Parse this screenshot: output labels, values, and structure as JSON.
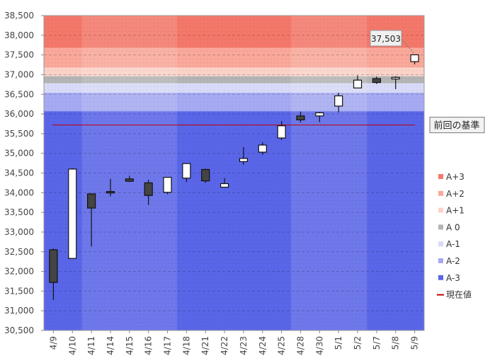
{
  "chart_data": {
    "type": "candlestick",
    "categories": [
      "4/9",
      "4/10",
      "4/11",
      "4/14",
      "4/15",
      "4/16",
      "4/17",
      "4/18",
      "4/21",
      "4/22",
      "4/23",
      "4/24",
      "4/25",
      "4/28",
      "4/30",
      "5/1",
      "5/2",
      "5/7",
      "5/8",
      "5/9"
    ],
    "ylim": [
      30500,
      38500
    ],
    "yticks": [
      "30,500",
      "31,000",
      "31,500",
      "32,000",
      "32,500",
      "33,000",
      "33,500",
      "34,000",
      "34,500",
      "35,000",
      "35,500",
      "36,000",
      "36,500",
      "37,000",
      "37,500",
      "38,000",
      "38,500"
    ],
    "ytick_values": [
      30500,
      31000,
      31500,
      32000,
      32500,
      33000,
      33500,
      34000,
      34500,
      35000,
      35500,
      36000,
      36500,
      37000,
      37500,
      38000,
      38500
    ],
    "candles": [
      {
        "open": 32550,
        "high": 32580,
        "low": 31280,
        "close": 31720
      },
      {
        "open": 32330,
        "high": 34620,
        "low": 32330,
        "close": 34600
      },
      {
        "open": 33970,
        "high": 33970,
        "low": 32630,
        "close": 33610
      },
      {
        "open": 34030,
        "high": 34350,
        "low": 33910,
        "close": 34010
      },
      {
        "open": 34350,
        "high": 34430,
        "low": 34270,
        "close": 34290
      },
      {
        "open": 34250,
        "high": 34330,
        "low": 33690,
        "close": 33930
      },
      {
        "open": 34010,
        "high": 34400,
        "low": 33960,
        "close": 34390
      },
      {
        "open": 34370,
        "high": 34750,
        "low": 34270,
        "close": 34740
      },
      {
        "open": 34590,
        "high": 34610,
        "low": 34250,
        "close": 34300
      },
      {
        "open": 34140,
        "high": 34370,
        "low": 34140,
        "close": 34230
      },
      {
        "open": 34790,
        "high": 35160,
        "low": 34710,
        "close": 34870
      },
      {
        "open": 35030,
        "high": 35280,
        "low": 34960,
        "close": 35210
      },
      {
        "open": 35390,
        "high": 35820,
        "low": 35340,
        "close": 35700
      },
      {
        "open": 35950,
        "high": 36060,
        "low": 35780,
        "close": 35850
      },
      {
        "open": 35950,
        "high": 36050,
        "low": 35790,
        "close": 36030
      },
      {
        "open": 36200,
        "high": 36540,
        "low": 36040,
        "close": 36460
      },
      {
        "open": 36660,
        "high": 36980,
        "low": 36660,
        "close": 36860
      },
      {
        "open": 36900,
        "high": 36950,
        "low": 36760,
        "close": 36800
      },
      {
        "open": 36890,
        "high": 36960,
        "low": 36630,
        "close": 36930
      },
      {
        "open": 37330,
        "high": 37510,
        "low": 37260,
        "close": 37503
      }
    ],
    "bands": [
      {
        "name": "A+3",
        "from": 37680,
        "to": 38500,
        "color": "#f4786a"
      },
      {
        "name": "A+2",
        "from": 37180,
        "to": 37680,
        "color": "#f9a899"
      },
      {
        "name": "A+1",
        "from": 36960,
        "to": 37180,
        "color": "#fbd2c8"
      },
      {
        "name": "A 0",
        "from": 36780,
        "to": 36960,
        "color": "#b4b4b4"
      },
      {
        "name": "A-1",
        "from": 36540,
        "to": 36780,
        "color": "#d8daf8"
      },
      {
        "name": "A-2",
        "from": 36070,
        "to": 36540,
        "color": "#a5aaf2"
      },
      {
        "name": "A-3",
        "from": 30500,
        "to": 36070,
        "color": "#5a66e8"
      }
    ],
    "current_value_line": {
      "name": "現在値",
      "value": 35720,
      "color": "#c00000"
    },
    "reference_label": "前回の基準",
    "last_price_label": "37,503",
    "legend": [
      "A+3",
      "A+2",
      "A+1",
      "A 0",
      "A-1",
      "A-2",
      "A-3",
      "現在値"
    ],
    "legend_placement": "right",
    "grid": true
  }
}
